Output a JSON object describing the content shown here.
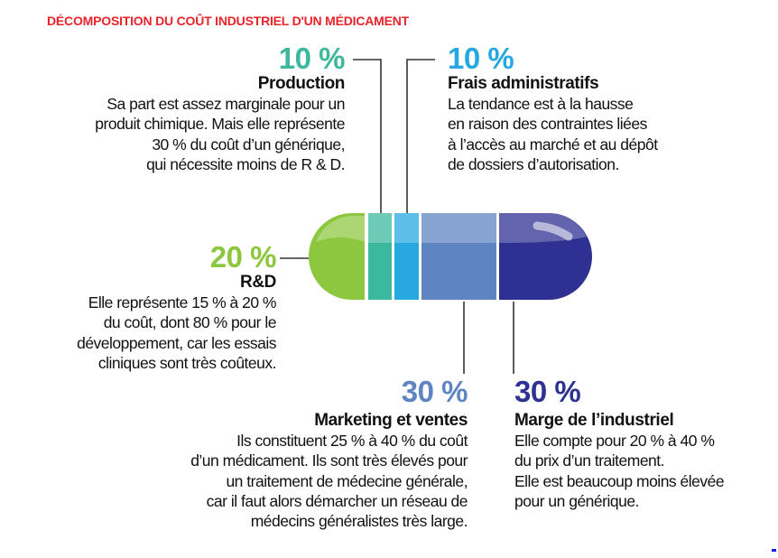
{
  "title": "DÉCOMPOSITION DU COÛT INDUSTRIEL D'UN MÉDICAMENT",
  "colors": {
    "title": "#e8242a",
    "rd": "#8dc63f",
    "production": "#3cb89e",
    "admin": "#27a8e0",
    "marketing": "#5f84c2",
    "marge": "#2e3192"
  },
  "segments": [
    {
      "key": "rd",
      "percent_label": "20 %",
      "heading": "R&D",
      "lines": [
        "Elle représente 15 % à 20 %",
        "du coût, dont 80 % pour le",
        "développement, car les essais",
        "cliniques sont très coûteux."
      ]
    },
    {
      "key": "production",
      "percent_label": "10 %",
      "heading": "Production",
      "lines": [
        "Sa part est assez  marginale pour un",
        "produit chimique. Mais elle représente",
        "30 % du coût d’un générique,",
        "qui nécessite moins de R & D."
      ]
    },
    {
      "key": "admin",
      "percent_label": "10 %",
      "heading": "Frais administratifs",
      "lines": [
        "La tendance est à la hausse",
        "en raison des contraintes liées",
        "à l’accès au marché et au dépôt",
        "de dossiers d’autorisation."
      ]
    },
    {
      "key": "marketing",
      "percent_label": "30 %",
      "heading": "Marketing et ventes",
      "lines": [
        "Ils constituent 25 % à 40 % du coût",
        "d’un médicament. Ils sont très élevés pour",
        "un traitement de médecine générale,",
        "car il faut alors démarcher un réseau de",
        "médecins généralistes très large."
      ]
    },
    {
      "key": "marge",
      "percent_label": "30 %",
      "heading": "Marge de l’industriel",
      "lines": [
        "Elle compte pour 20 % à 40 %",
        "du prix d’un traitement.",
        "Elle est beaucoup moins élevée",
        "pour un générique."
      ]
    }
  ]
}
